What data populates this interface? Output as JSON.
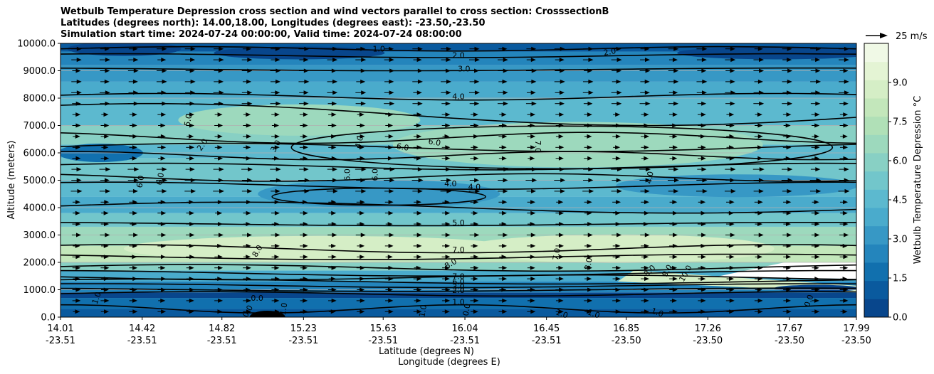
{
  "title_lines": [
    "Wetbulb Temperature Depression cross section and wind vectors parallel to cross section: CrosssectionB",
    "Latitudes (degrees north): 14.00,18.00, Longitudes (degrees east): -23.50,-23.50",
    "Simulation start time: 2024-07-24 00:00:00, Valid time: 2024-07-24 08:00:00"
  ],
  "chart_data": {
    "type": "contour_cross_section",
    "ylabel": "Altitude (meters)",
    "xlabel_lat": "Latitude (degrees N)",
    "xlabel_lon": "Longitude (degrees E)",
    "ylim": [
      0,
      10000
    ],
    "y_ticks": [
      "0.0",
      "1000.0",
      "2000.0",
      "3000.0",
      "4000.0",
      "5000.0",
      "6000.0",
      "7000.0",
      "8000.0",
      "9000.0",
      "10000.0"
    ],
    "y_tick_values": [
      0,
      1000,
      2000,
      3000,
      4000,
      5000,
      6000,
      7000,
      8000,
      9000,
      10000
    ],
    "x_ticks": [
      {
        "lat": "14.01",
        "lon": "-23.51",
        "pos": 0.0
      },
      {
        "lat": "14.42",
        "lon": "-23.51",
        "pos": 0.1026
      },
      {
        "lat": "14.82",
        "lon": "-23.51",
        "pos": 0.2028
      },
      {
        "lat": "15.23",
        "lon": "-23.51",
        "pos": 0.3053
      },
      {
        "lat": "15.63",
        "lon": "-23.51",
        "pos": 0.4054
      },
      {
        "lat": "16.04",
        "lon": "-23.51",
        "pos": 0.5081
      },
      {
        "lat": "16.45",
        "lon": "-23.51",
        "pos": 0.6106
      },
      {
        "lat": "16.85",
        "lon": "-23.50",
        "pos": 0.7108
      },
      {
        "lat": "17.26",
        "lon": "-23.50",
        "pos": 0.8133
      },
      {
        "lat": "17.67",
        "lon": "-23.50",
        "pos": 0.9159
      },
      {
        "lat": "17.99",
        "lon": "-23.50",
        "pos": 1.0
      }
    ],
    "colorbar": {
      "label": "Wetbulb Temperature Depression °C",
      "range": [
        0,
        10.5
      ],
      "ticks": [
        "0.0",
        "1.5",
        "3.0",
        "4.5",
        "6.0",
        "7.5",
        "9.0"
      ],
      "tick_values": [
        0,
        1.5,
        3.0,
        4.5,
        6.0,
        7.5,
        9.0
      ],
      "colors": [
        "#08468c",
        "#0a5a9e",
        "#1170ae",
        "#2485bc",
        "#3798c5",
        "#4aabcc",
        "#5cb9cf",
        "#72c6cb",
        "#88d0c4",
        "#9dd9bd",
        "#b0e0b7",
        "#c3e7bb",
        "#d5eec6",
        "#e4f4d4",
        "#f0f9e6"
      ]
    },
    "wind_key": {
      "label": "25 m/s",
      "speed": 25
    },
    "contour_labels": [
      {
        "t": "1.0",
        "x": 0.4,
        "y": 9800,
        "r": 0
      },
      {
        "t": "2.0",
        "x": 0.5,
        "y": 9570,
        "r": 0
      },
      {
        "t": "2.0",
        "x": 0.69,
        "y": 9700,
        "r": -10
      },
      {
        "t": "3.0",
        "x": 0.507,
        "y": 9080,
        "r": 0
      },
      {
        "t": "4.0",
        "x": 0.5,
        "y": 8060,
        "r": 0
      },
      {
        "t": "5.0",
        "x": 0.16,
        "y": 7200,
        "r": -80
      },
      {
        "t": "2.0",
        "x": 0.178,
        "y": 6300,
        "r": -55
      },
      {
        "t": "3.0",
        "x": 0.27,
        "y": 6250,
        "r": -60
      },
      {
        "t": "4.0",
        "x": 0.375,
        "y": 6400,
        "r": -75
      },
      {
        "t": "6.0",
        "x": 0.43,
        "y": 6220,
        "r": 10
      },
      {
        "t": "6.0",
        "x": 0.47,
        "y": 6400,
        "r": 10
      },
      {
        "t": "7.0",
        "x": 0.6,
        "y": 6230,
        "r": 90
      },
      {
        "t": "6.0",
        "x": 0.1,
        "y": 4950,
        "r": -80
      },
      {
        "t": "6.0",
        "x": 0.125,
        "y": 5050,
        "r": -80
      },
      {
        "t": "6.0",
        "x": 0.36,
        "y": 5200,
        "r": -90
      },
      {
        "t": "6.0",
        "x": 0.395,
        "y": 5200,
        "r": -90
      },
      {
        "t": "4.0",
        "x": 0.49,
        "y": 4880,
        "r": 0
      },
      {
        "t": "4.0",
        "x": 0.52,
        "y": 4760,
        "r": 0
      },
      {
        "t": "4.0",
        "x": 0.74,
        "y": 5100,
        "r": -80
      },
      {
        "t": "5.0",
        "x": 0.5,
        "y": 3450,
        "r": 0
      },
      {
        "t": "8.0",
        "x": 0.247,
        "y": 2420,
        "r": -60
      },
      {
        "t": "7.0",
        "x": 0.5,
        "y": 2470,
        "r": 0
      },
      {
        "t": "8.0",
        "x": 0.49,
        "y": 1960,
        "r": -30
      },
      {
        "t": "7.0",
        "x": 0.623,
        "y": 2300,
        "r": -80
      },
      {
        "t": "8.0",
        "x": 0.663,
        "y": 1950,
        "r": -80
      },
      {
        "t": "8.0",
        "x": 0.74,
        "y": 1700,
        "r": -45
      },
      {
        "t": "9.0",
        "x": 0.762,
        "y": 1700,
        "r": -60
      },
      {
        "t": "10.0",
        "x": 0.785,
        "y": 1600,
        "r": -60
      },
      {
        "t": "7.0",
        "x": 0.5,
        "y": 1500,
        "r": 0
      },
      {
        "t": "6.0",
        "x": 0.5,
        "y": 1300,
        "r": 0
      },
      {
        "t": "3.0",
        "x": 0.5,
        "y": 1120,
        "r": 0
      },
      {
        "t": "2.0",
        "x": 0.5,
        "y": 990,
        "r": 0
      },
      {
        "t": "1.0",
        "x": 0.5,
        "y": 560,
        "r": 0
      },
      {
        "t": "1.0",
        "x": 0.045,
        "y": 700,
        "r": -70
      },
      {
        "t": "0.0",
        "x": 0.247,
        "y": 700,
        "r": 0
      },
      {
        "t": "0.0",
        "x": 0.235,
        "y": 220,
        "r": -60
      },
      {
        "t": "1.0",
        "x": 0.28,
        "y": 300,
        "r": -80
      },
      {
        "t": "1.0",
        "x": 0.455,
        "y": 230,
        "r": -80
      },
      {
        "t": "0.0",
        "x": 0.51,
        "y": 270,
        "r": -80
      },
      {
        "t": "1.0",
        "x": 0.63,
        "y": 130,
        "r": 20
      },
      {
        "t": "1.0",
        "x": 0.67,
        "y": 130,
        "r": 20
      },
      {
        "t": "1.0",
        "x": 0.75,
        "y": 180,
        "r": 20
      },
      {
        "t": "0.0",
        "x": 0.94,
        "y": 600,
        "r": -70
      }
    ]
  }
}
